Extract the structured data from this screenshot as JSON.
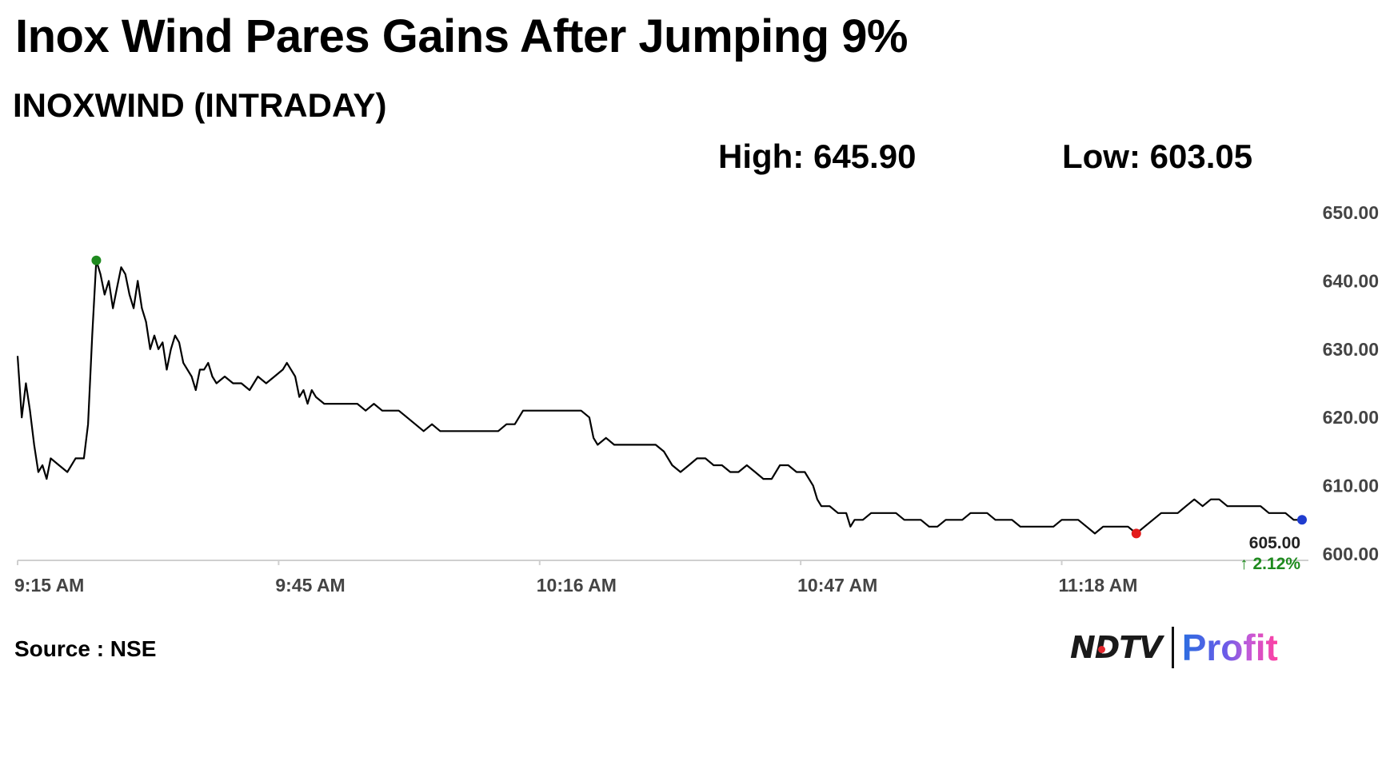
{
  "headline": "Inox Wind Pares Gains After Jumping 9%",
  "subtitle": "INOXWIND (INTRADAY)",
  "stats": {
    "high": "High: 645.90",
    "low": "Low: 603.05"
  },
  "source": "Source : NSE",
  "brand": {
    "name_left": "NDTV",
    "name_right": "Profit"
  },
  "chart_data": {
    "type": "line",
    "x_tick_labels": [
      "9:15 AM",
      "9:45 AM",
      "10:16 AM",
      "10:47 AM",
      "11:18 AM"
    ],
    "y_tick_labels": [
      "650.00",
      "640.00",
      "630.00",
      "620.00",
      "610.00",
      "600.00"
    ],
    "ylim": [
      600,
      650
    ],
    "xlim_minutes": [
      0,
      155
    ],
    "grid": false,
    "current": {
      "price": "605.00",
      "change": "2.12%",
      "direction": "up"
    },
    "markers": [
      {
        "label": "high",
        "x_minutes": 9.5,
        "y": 643.0,
        "color": "#1e8a1e"
      },
      {
        "label": "low",
        "x_minutes": 135,
        "y": 603.0,
        "color": "#e31b1b"
      },
      {
        "label": "last",
        "x_minutes": 155,
        "y": 605.0,
        "color": "#1f3ccf"
      }
    ],
    "series": [
      {
        "color": "#000000",
        "points": [
          [
            0,
            629
          ],
          [
            0.5,
            620
          ],
          [
            1,
            625
          ],
          [
            1.5,
            621
          ],
          [
            2,
            616
          ],
          [
            2.5,
            612
          ],
          [
            3,
            613
          ],
          [
            3.5,
            611
          ],
          [
            4,
            614
          ],
          [
            5,
            613
          ],
          [
            6,
            612
          ],
          [
            7,
            614
          ],
          [
            8,
            614
          ],
          [
            8.5,
            619
          ],
          [
            9,
            632
          ],
          [
            9.5,
            643
          ],
          [
            10,
            641
          ],
          [
            10.5,
            638
          ],
          [
            11,
            640
          ],
          [
            11.5,
            636
          ],
          [
            12,
            639
          ],
          [
            12.5,
            642
          ],
          [
            13,
            641
          ],
          [
            13.5,
            638
          ],
          [
            14,
            636
          ],
          [
            14.5,
            640
          ],
          [
            15,
            636
          ],
          [
            15.5,
            634
          ],
          [
            16,
            630
          ],
          [
            16.5,
            632
          ],
          [
            17,
            630
          ],
          [
            17.5,
            631
          ],
          [
            18,
            627
          ],
          [
            18.5,
            630
          ],
          [
            19,
            632
          ],
          [
            19.5,
            631
          ],
          [
            20,
            628
          ],
          [
            21,
            626
          ],
          [
            21.5,
            624
          ],
          [
            22,
            627
          ],
          [
            22.5,
            627
          ],
          [
            23,
            628
          ],
          [
            23.5,
            626
          ],
          [
            24,
            625
          ],
          [
            25,
            626
          ],
          [
            26,
            625
          ],
          [
            27,
            625
          ],
          [
            28,
            624
          ],
          [
            29,
            626
          ],
          [
            30,
            625
          ],
          [
            31,
            626
          ],
          [
            32,
            627
          ],
          [
            32.5,
            628
          ],
          [
            33,
            627
          ],
          [
            33.5,
            626
          ],
          [
            34,
            623
          ],
          [
            34.5,
            624
          ],
          [
            35,
            622
          ],
          [
            35.5,
            624
          ],
          [
            36,
            623
          ],
          [
            37,
            622
          ],
          [
            38,
            622
          ],
          [
            39,
            622
          ],
          [
            40,
            622
          ],
          [
            41,
            622
          ],
          [
            42,
            621
          ],
          [
            43,
            622
          ],
          [
            44,
            621
          ],
          [
            45,
            621
          ],
          [
            46,
            621
          ],
          [
            47,
            620
          ],
          [
            48,
            619
          ],
          [
            49,
            618
          ],
          [
            50,
            619
          ],
          [
            51,
            618
          ],
          [
            52,
            618
          ],
          [
            53,
            618
          ],
          [
            54,
            618
          ],
          [
            55,
            618
          ],
          [
            56,
            618
          ],
          [
            57,
            618
          ],
          [
            58,
            618
          ],
          [
            59,
            619
          ],
          [
            60,
            619
          ],
          [
            61,
            621
          ],
          [
            62,
            621
          ],
          [
            63,
            621
          ],
          [
            64,
            621
          ],
          [
            65,
            621
          ],
          [
            66,
            621
          ],
          [
            67,
            621
          ],
          [
            68,
            621
          ],
          [
            69,
            620
          ],
          [
            69.5,
            617
          ],
          [
            70,
            616
          ],
          [
            71,
            617
          ],
          [
            72,
            616
          ],
          [
            73,
            616
          ],
          [
            74,
            616
          ],
          [
            75,
            616
          ],
          [
            76,
            616
          ],
          [
            77,
            616
          ],
          [
            78,
            615
          ],
          [
            79,
            613
          ],
          [
            80,
            612
          ],
          [
            81,
            613
          ],
          [
            82,
            614
          ],
          [
            83,
            614
          ],
          [
            84,
            613
          ],
          [
            85,
            613
          ],
          [
            86,
            612
          ],
          [
            87,
            612
          ],
          [
            88,
            613
          ],
          [
            89,
            612
          ],
          [
            90,
            611
          ],
          [
            91,
            611
          ],
          [
            92,
            613
          ],
          [
            93,
            613
          ],
          [
            94,
            612
          ],
          [
            95,
            612
          ],
          [
            96,
            610
          ],
          [
            96.5,
            608
          ],
          [
            97,
            607
          ],
          [
            98,
            607
          ],
          [
            99,
            606
          ],
          [
            100,
            606
          ],
          [
            100.5,
            604
          ],
          [
            101,
            605
          ],
          [
            102,
            605
          ],
          [
            103,
            606
          ],
          [
            104,
            606
          ],
          [
            105,
            606
          ],
          [
            106,
            606
          ],
          [
            107,
            605
          ],
          [
            108,
            605
          ],
          [
            109,
            605
          ],
          [
            110,
            604
          ],
          [
            111,
            604
          ],
          [
            112,
            605
          ],
          [
            113,
            605
          ],
          [
            114,
            605
          ],
          [
            115,
            606
          ],
          [
            116,
            606
          ],
          [
            117,
            606
          ],
          [
            118,
            605
          ],
          [
            119,
            605
          ],
          [
            120,
            605
          ],
          [
            121,
            604
          ],
          [
            122,
            604
          ],
          [
            123,
            604
          ],
          [
            124,
            604
          ],
          [
            125,
            604
          ],
          [
            126,
            605
          ],
          [
            127,
            605
          ],
          [
            128,
            605
          ],
          [
            129,
            604
          ],
          [
            130,
            603
          ],
          [
            131,
            604
          ],
          [
            132,
            604
          ],
          [
            133,
            604
          ],
          [
            134,
            604
          ],
          [
            135,
            603
          ],
          [
            136,
            604
          ],
          [
            137,
            605
          ],
          [
            138,
            606
          ],
          [
            139,
            606
          ],
          [
            140,
            606
          ],
          [
            141,
            607
          ],
          [
            142,
            608
          ],
          [
            143,
            607
          ],
          [
            144,
            608
          ],
          [
            145,
            608
          ],
          [
            146,
            607
          ],
          [
            147,
            607
          ],
          [
            148,
            607
          ],
          [
            149,
            607
          ],
          [
            150,
            607
          ],
          [
            151,
            606
          ],
          [
            152,
            606
          ],
          [
            153,
            606
          ],
          [
            154,
            605
          ],
          [
            155,
            605
          ]
        ]
      }
    ]
  }
}
